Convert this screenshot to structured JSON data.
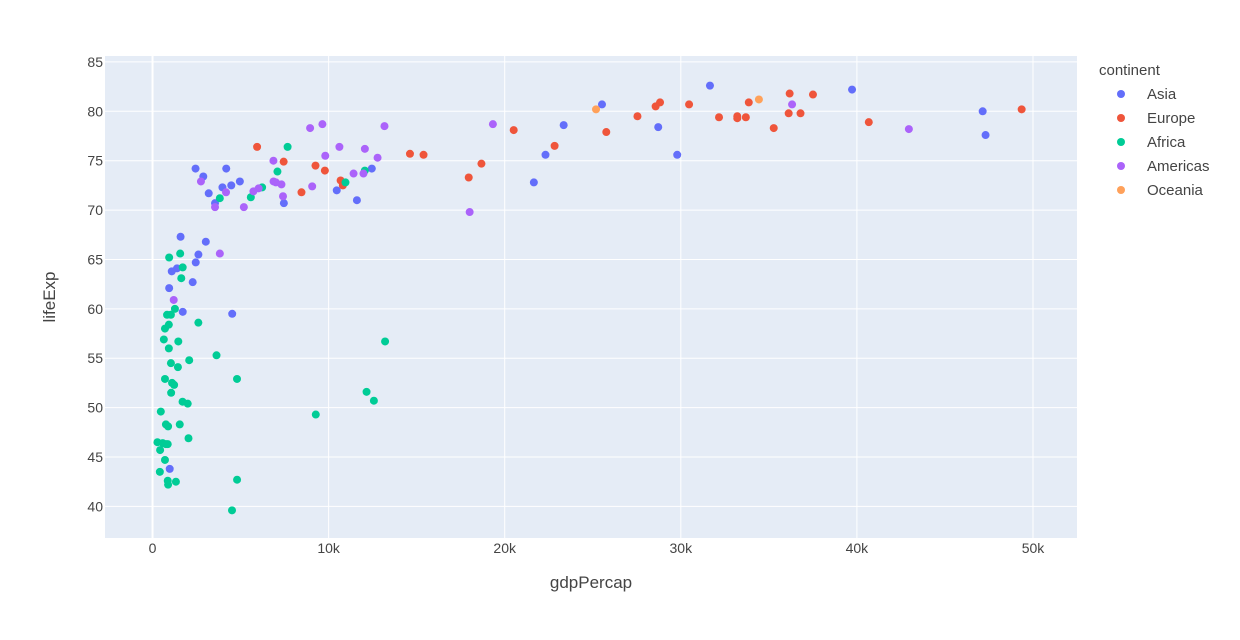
{
  "chart_data": {
    "type": "scatter",
    "xlabel": "gdpPercap",
    "ylabel": "lifeExp",
    "xlim": [
      -2700,
      52500
    ],
    "ylim": [
      36.8,
      85.6
    ],
    "x_ticks": [
      0,
      10000,
      20000,
      30000,
      40000,
      50000
    ],
    "x_tick_labels": [
      "0",
      "10k",
      "20k",
      "30k",
      "40k",
      "50k"
    ],
    "y_ticks": [
      40,
      45,
      50,
      55,
      60,
      65,
      70,
      75,
      80,
      85
    ],
    "y_tick_labels": [
      "40",
      "45",
      "50",
      "55",
      "60",
      "65",
      "70",
      "75",
      "80",
      "85"
    ],
    "grid": true,
    "legend": {
      "title": "continent",
      "position": "right"
    },
    "series": [
      {
        "name": "Asia",
        "color": "#636efa",
        "points": [
          [
            31656,
            82.6
          ],
          [
            39725,
            82.2
          ],
          [
            25524,
            80.7
          ],
          [
            47143,
            80.0
          ],
          [
            47307,
            77.6
          ],
          [
            28718,
            78.4
          ],
          [
            23348,
            78.6
          ],
          [
            22316,
            75.6
          ],
          [
            29796,
            75.6
          ],
          [
            21655,
            72.8
          ],
          [
            12452,
            74.2
          ],
          [
            10461,
            72.0
          ],
          [
            11606,
            71.0
          ],
          [
            4959,
            72.9
          ],
          [
            4471,
            72.5
          ],
          [
            3970,
            72.3
          ],
          [
            3548,
            70.7
          ],
          [
            3190,
            71.7
          ],
          [
            2442,
            74.2
          ],
          [
            2882,
            73.4
          ],
          [
            4185,
            74.2
          ],
          [
            7458,
            70.7
          ],
          [
            3025,
            66.8
          ],
          [
            2605,
            65.5
          ],
          [
            2453,
            64.7
          ],
          [
            1592,
            67.3
          ],
          [
            1391,
            64.1
          ],
          [
            2280,
            62.7
          ],
          [
            1091,
            63.8
          ],
          [
            944,
            62.1
          ],
          [
            1714,
            59.7
          ],
          [
            4524,
            59.5
          ],
          [
            975,
            43.8
          ]
        ]
      },
      {
        "name": "Europe",
        "color": "#ef553b",
        "points": [
          [
            49357,
            80.2
          ],
          [
            40676,
            78.9
          ],
          [
            37506,
            81.7
          ],
          [
            36181,
            81.8
          ],
          [
            36126,
            79.8
          ],
          [
            36798,
            79.8
          ],
          [
            35278,
            78.3
          ],
          [
            33860,
            80.9
          ],
          [
            33693,
            79.4
          ],
          [
            33207,
            79.3
          ],
          [
            33207,
            79.5
          ],
          [
            32170,
            79.4
          ],
          [
            30470,
            80.7
          ],
          [
            28821,
            80.9
          ],
          [
            28570,
            80.5
          ],
          [
            27538,
            79.5
          ],
          [
            25768,
            77.9
          ],
          [
            22833,
            76.5
          ],
          [
            20510,
            78.1
          ],
          [
            18678,
            74.7
          ],
          [
            17956,
            73.3
          ],
          [
            15390,
            75.6
          ],
          [
            14619,
            75.7
          ],
          [
            10681,
            73.0
          ],
          [
            10808,
            72.5
          ],
          [
            9787,
            74.0
          ],
          [
            9254,
            74.5
          ],
          [
            8458,
            71.8
          ],
          [
            7446,
            74.9
          ],
          [
            5937,
            76.4
          ]
        ]
      },
      {
        "name": "Africa",
        "color": "#00cc96",
        "points": [
          [
            13206,
            56.7
          ],
          [
            12570,
            50.7
          ],
          [
            12154,
            51.6
          ],
          [
            12057,
            74.0
          ],
          [
            10957,
            72.8
          ],
          [
            9270,
            49.3
          ],
          [
            7670,
            76.4
          ],
          [
            7093,
            73.9
          ],
          [
            6223,
            72.3
          ],
          [
            5581,
            71.3
          ],
          [
            4797,
            52.9
          ],
          [
            4800,
            42.7
          ],
          [
            4513,
            39.6
          ],
          [
            3820,
            71.2
          ],
          [
            3633,
            55.3
          ],
          [
            2602,
            58.6
          ],
          [
            2082,
            54.8
          ],
          [
            2042,
            46.9
          ],
          [
            1998,
            50.4
          ],
          [
            1712,
            64.2
          ],
          [
            1704,
            50.6
          ],
          [
            1632,
            63.1
          ],
          [
            1569,
            65.6
          ],
          [
            1545,
            48.3
          ],
          [
            1441,
            54.1
          ],
          [
            1463,
            56.7
          ],
          [
            1271,
            60.0
          ],
          [
            1327,
            42.5
          ],
          [
            1107,
            52.5
          ],
          [
            1226,
            52.3
          ],
          [
            1056,
            51.5
          ],
          [
            1044,
            54.5
          ],
          [
            1042,
            59.4
          ],
          [
            943,
            65.2
          ],
          [
            883,
            42.2
          ],
          [
            863,
            42.6
          ],
          [
            926,
            58.4
          ],
          [
            926,
            56.0
          ],
          [
            883,
            48.1
          ],
          [
            824,
            59.4
          ],
          [
            759,
            46.3
          ],
          [
            706,
            58.0
          ],
          [
            706,
            52.9
          ],
          [
            641,
            56.9
          ],
          [
            579,
            46.4
          ],
          [
            470,
            49.6
          ],
          [
            415,
            43.5
          ],
          [
            430,
            45.7
          ],
          [
            277,
            46.5
          ],
          [
            863,
            46.3
          ],
          [
            759,
            48.3
          ],
          [
            706,
            44.7
          ]
        ]
      },
      {
        "name": "Americas",
        "color": "#ab63fa",
        "points": [
          [
            42952,
            78.2
          ],
          [
            36319,
            80.7
          ],
          [
            19329,
            78.7
          ],
          [
            18009,
            69.8
          ],
          [
            13172,
            78.5
          ],
          [
            12779,
            75.3
          ],
          [
            12058,
            76.2
          ],
          [
            11978,
            73.7
          ],
          [
            10612,
            76.4
          ],
          [
            11416,
            73.7
          ],
          [
            9809,
            75.5
          ],
          [
            9646,
            78.7
          ],
          [
            9066,
            72.4
          ],
          [
            8948,
            78.3
          ],
          [
            7321,
            72.6
          ],
          [
            7409,
            71.4
          ],
          [
            6873,
            72.9
          ],
          [
            6025,
            72.2
          ],
          [
            7006,
            72.8
          ],
          [
            6865,
            75.0
          ],
          [
            5728,
            71.9
          ],
          [
            5186,
            70.3
          ],
          [
            4173,
            71.8
          ],
          [
            3548,
            70.3
          ],
          [
            3822,
            65.6
          ],
          [
            1202,
            60.9
          ],
          [
            2749,
            72.9
          ]
        ]
      },
      {
        "name": "Oceania",
        "color": "#ffa15a",
        "points": [
          [
            34435,
            81.2
          ],
          [
            25185,
            80.2
          ]
        ]
      }
    ]
  }
}
